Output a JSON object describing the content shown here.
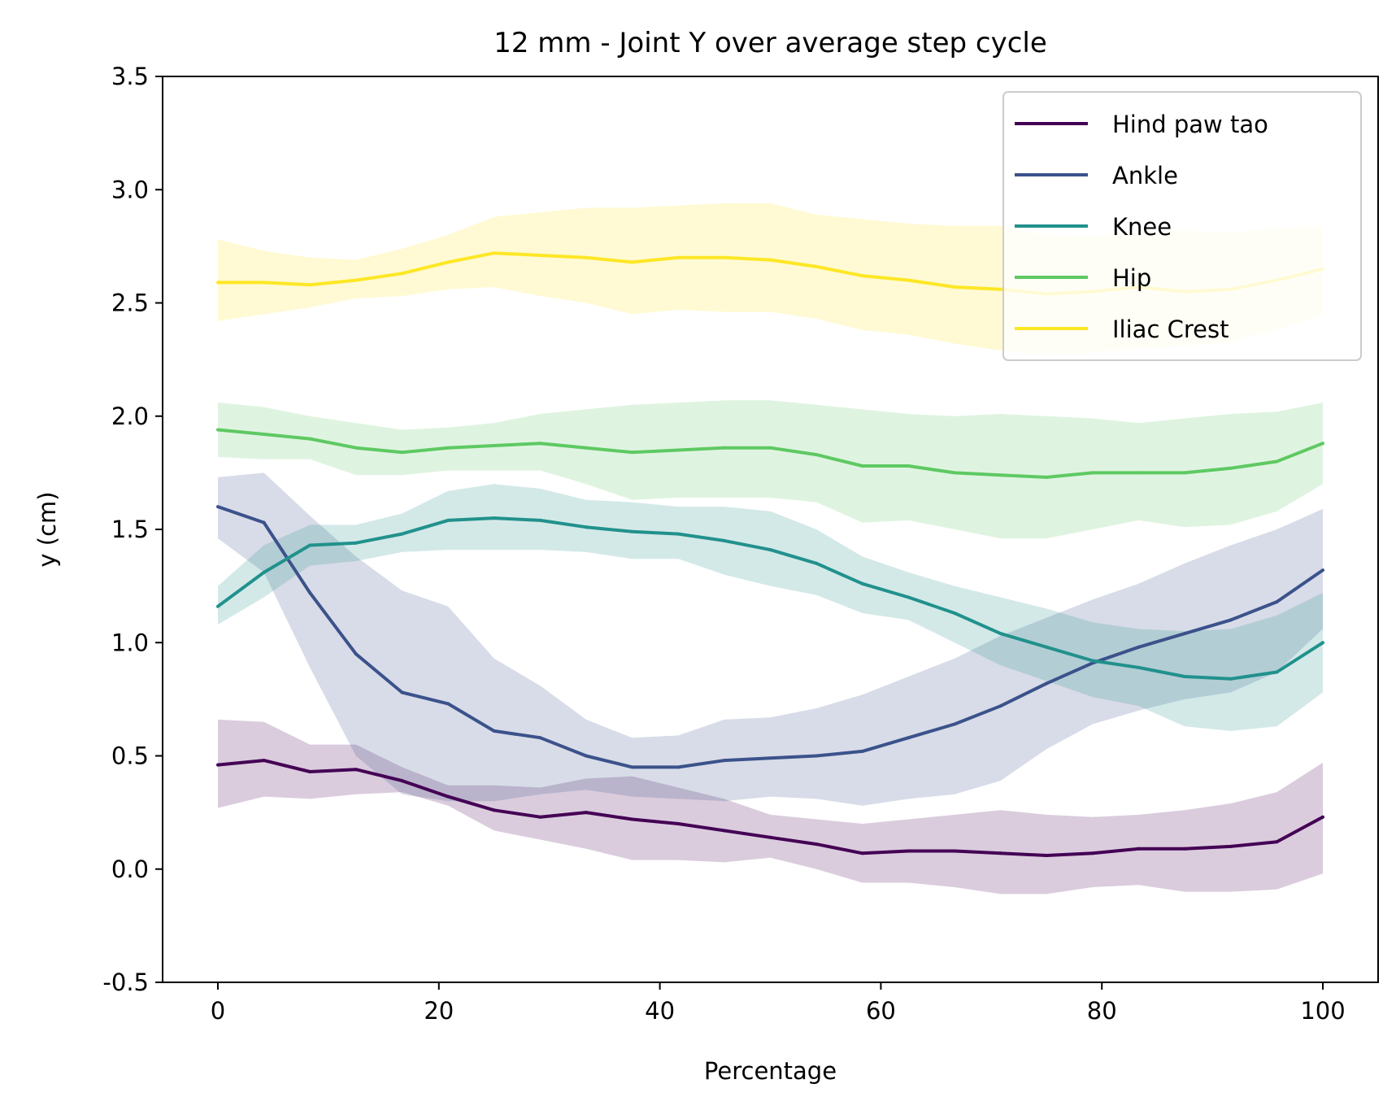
{
  "chart_data": {
    "type": "line",
    "title": "12 mm - Joint Y over average step cycle",
    "xlabel": "Percentage",
    "ylabel": "y (cm)",
    "xlim": [
      -5,
      105
    ],
    "ylim": [
      -0.5,
      3.5
    ],
    "xticks": [
      0,
      20,
      40,
      60,
      80,
      100
    ],
    "xtick_labels": [
      "0",
      "20",
      "40",
      "60",
      "80",
      "100"
    ],
    "yticks": [
      -0.5,
      0.0,
      0.5,
      1.0,
      1.5,
      2.0,
      2.5,
      3.0,
      3.5
    ],
    "ytick_labels": [
      "-0.5",
      "0.0",
      "0.5",
      "1.0",
      "1.5",
      "2.0",
      "2.5",
      "3.0",
      "3.5"
    ],
    "grid": false,
    "legend_position": "top-right",
    "x": [
      0,
      4.17,
      8.33,
      12.5,
      16.67,
      20.83,
      25,
      29.17,
      33.33,
      37.5,
      41.67,
      45.83,
      50,
      54.17,
      58.33,
      62.5,
      66.67,
      70.83,
      75,
      79.17,
      83.33,
      87.5,
      91.67,
      95.83,
      100
    ],
    "series": [
      {
        "name": "Hind paw tao",
        "color": "#440154",
        "values": [
          0.46,
          0.48,
          0.43,
          0.44,
          0.39,
          0.32,
          0.26,
          0.23,
          0.25,
          0.22,
          0.2,
          0.17,
          0.14,
          0.11,
          0.07,
          0.08,
          0.08,
          0.07,
          0.06,
          0.07,
          0.09,
          0.09,
          0.1,
          0.12,
          0.23
        ],
        "upper": [
          0.66,
          0.65,
          0.55,
          0.55,
          0.45,
          0.37,
          0.37,
          0.36,
          0.4,
          0.41,
          0.36,
          0.31,
          0.24,
          0.22,
          0.2,
          0.22,
          0.24,
          0.26,
          0.24,
          0.23,
          0.24,
          0.26,
          0.29,
          0.34,
          0.47
        ],
        "lower": [
          0.27,
          0.32,
          0.31,
          0.33,
          0.34,
          0.28,
          0.17,
          0.13,
          0.09,
          0.04,
          0.04,
          0.03,
          0.05,
          0.0,
          -0.06,
          -0.06,
          -0.08,
          -0.11,
          -0.11,
          -0.08,
          -0.07,
          -0.1,
          -0.1,
          -0.09,
          -0.02
        ]
      },
      {
        "name": "Ankle",
        "color": "#3b528b",
        "values": [
          1.6,
          1.53,
          1.22,
          0.95,
          0.78,
          0.73,
          0.61,
          0.58,
          0.5,
          0.45,
          0.45,
          0.48,
          0.49,
          0.5,
          0.52,
          0.58,
          0.64,
          0.72,
          0.82,
          0.91,
          0.98,
          1.04,
          1.1,
          1.18,
          1.32
        ],
        "upper": [
          1.73,
          1.75,
          1.56,
          1.38,
          1.23,
          1.16,
          0.93,
          0.81,
          0.66,
          0.58,
          0.59,
          0.66,
          0.67,
          0.71,
          0.77,
          0.85,
          0.93,
          1.03,
          1.11,
          1.19,
          1.26,
          1.35,
          1.43,
          1.5,
          1.59
        ],
        "lower": [
          1.46,
          1.31,
          0.89,
          0.5,
          0.33,
          0.3,
          0.3,
          0.33,
          0.35,
          0.32,
          0.31,
          0.3,
          0.32,
          0.31,
          0.28,
          0.31,
          0.33,
          0.39,
          0.53,
          0.64,
          0.7,
          0.75,
          0.78,
          0.87,
          1.06
        ]
      },
      {
        "name": "Knee",
        "color": "#21918c",
        "values": [
          1.16,
          1.31,
          1.43,
          1.44,
          1.48,
          1.54,
          1.55,
          1.54,
          1.51,
          1.49,
          1.48,
          1.45,
          1.41,
          1.35,
          1.26,
          1.2,
          1.13,
          1.04,
          0.98,
          0.92,
          0.89,
          0.85,
          0.84,
          0.87,
          1.0
        ],
        "upper": [
          1.25,
          1.43,
          1.52,
          1.52,
          1.57,
          1.67,
          1.7,
          1.68,
          1.63,
          1.62,
          1.6,
          1.6,
          1.58,
          1.5,
          1.38,
          1.31,
          1.25,
          1.2,
          1.15,
          1.09,
          1.06,
          1.05,
          1.06,
          1.12,
          1.22
        ],
        "lower": [
          1.08,
          1.2,
          1.34,
          1.36,
          1.4,
          1.41,
          1.41,
          1.41,
          1.4,
          1.37,
          1.37,
          1.3,
          1.25,
          1.21,
          1.13,
          1.1,
          1.0,
          0.9,
          0.83,
          0.76,
          0.72,
          0.63,
          0.61,
          0.63,
          0.78
        ]
      },
      {
        "name": "Hip",
        "color": "#5ec962",
        "values": [
          1.94,
          1.92,
          1.9,
          1.86,
          1.84,
          1.86,
          1.87,
          1.88,
          1.86,
          1.84,
          1.85,
          1.86,
          1.86,
          1.83,
          1.78,
          1.78,
          1.75,
          1.74,
          1.73,
          1.75,
          1.75,
          1.75,
          1.77,
          1.8,
          1.88
        ],
        "upper": [
          2.06,
          2.04,
          2.0,
          1.97,
          1.94,
          1.95,
          1.97,
          2.01,
          2.03,
          2.05,
          2.06,
          2.07,
          2.07,
          2.05,
          2.03,
          2.01,
          2.0,
          2.01,
          2.0,
          1.99,
          1.97,
          1.99,
          2.01,
          2.02,
          2.06
        ],
        "lower": [
          1.82,
          1.81,
          1.81,
          1.74,
          1.74,
          1.76,
          1.76,
          1.76,
          1.7,
          1.63,
          1.64,
          1.64,
          1.64,
          1.62,
          1.53,
          1.54,
          1.5,
          1.46,
          1.46,
          1.5,
          1.54,
          1.51,
          1.52,
          1.58,
          1.7
        ]
      },
      {
        "name": "Iliac Crest",
        "color": "#fde725",
        "values": [
          2.59,
          2.59,
          2.58,
          2.6,
          2.63,
          2.68,
          2.72,
          2.71,
          2.7,
          2.68,
          2.7,
          2.7,
          2.69,
          2.66,
          2.62,
          2.6,
          2.57,
          2.56,
          2.54,
          2.55,
          2.57,
          2.55,
          2.56,
          2.6,
          2.65
        ],
        "upper": [
          2.78,
          2.73,
          2.7,
          2.69,
          2.74,
          2.8,
          2.88,
          2.9,
          2.92,
          2.92,
          2.93,
          2.94,
          2.94,
          2.89,
          2.87,
          2.85,
          2.84,
          2.84,
          2.8,
          2.79,
          2.82,
          2.82,
          2.81,
          2.83,
          2.84
        ],
        "lower": [
          2.42,
          2.45,
          2.48,
          2.52,
          2.53,
          2.56,
          2.57,
          2.53,
          2.5,
          2.45,
          2.47,
          2.46,
          2.46,
          2.43,
          2.38,
          2.36,
          2.32,
          2.29,
          2.27,
          2.28,
          2.3,
          2.31,
          2.33,
          2.38,
          2.45
        ]
      }
    ]
  }
}
